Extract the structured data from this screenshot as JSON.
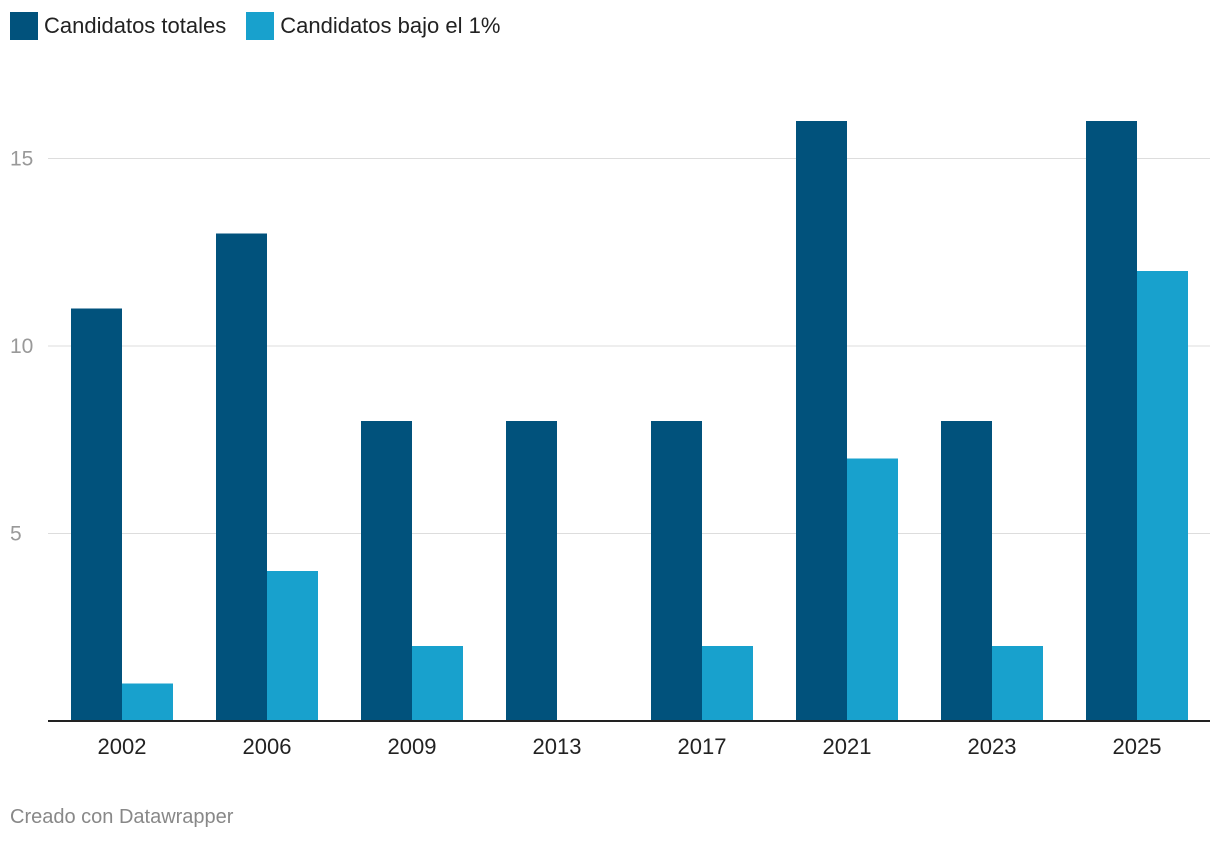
{
  "chart_data": {
    "type": "bar",
    "categories": [
      "2002",
      "2006",
      "2009",
      "2013",
      "2017",
      "2021",
      "2023",
      "2025"
    ],
    "series": [
      {
        "name": "Candidatos totales",
        "color": "#01527c",
        "values": [
          11,
          13,
          8,
          8,
          8,
          16,
          8,
          16
        ]
      },
      {
        "name": "Candidatos bajo el 1%",
        "color": "#18a1cd",
        "values": [
          1,
          4,
          2,
          0,
          2,
          7,
          2,
          12
        ]
      }
    ],
    "yticks": [
      5,
      10,
      15
    ],
    "ylim": [
      0,
      16
    ],
    "grid": true,
    "legend": "top-left",
    "xlabel": "",
    "ylabel": ""
  },
  "legend": {
    "items": [
      {
        "label": "Candidatos totales",
        "color": "#01527c"
      },
      {
        "label": "Candidatos bajo el 1%",
        "color": "#18a1cd"
      }
    ]
  },
  "footer": {
    "credit": "Creado con Datawrapper"
  }
}
